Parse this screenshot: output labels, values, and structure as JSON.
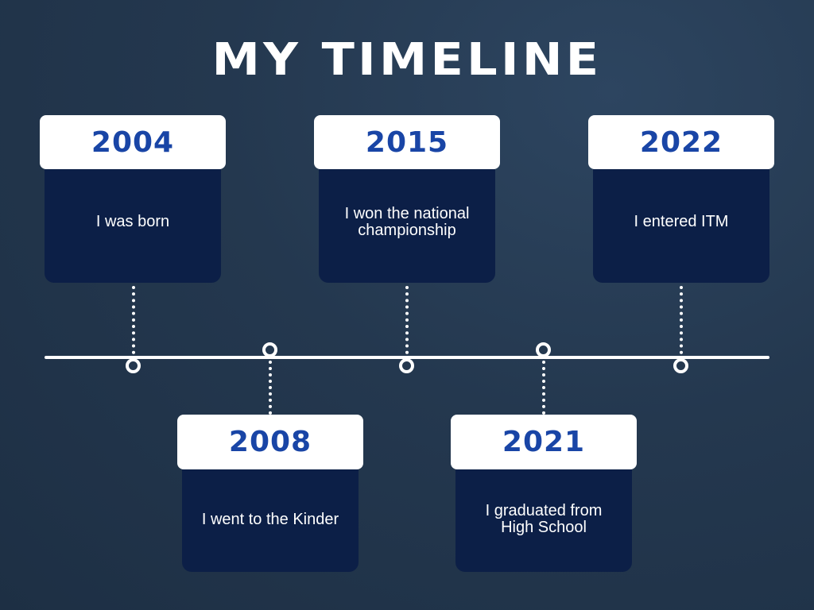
{
  "title": "MY TIMELINE",
  "events": [
    {
      "year": "2004",
      "text": "I was born"
    },
    {
      "year": "2008",
      "text": "I went to the Kinder"
    },
    {
      "year": "2015",
      "text": "I won the national championship"
    },
    {
      "year": "2021",
      "text": "I graduated from High School"
    },
    {
      "year": "2022",
      "text": "I entered ITM"
    }
  ],
  "colors": {
    "year_text": "#1945a6",
    "card_body": "#0c1f47",
    "background": "#24384f"
  }
}
